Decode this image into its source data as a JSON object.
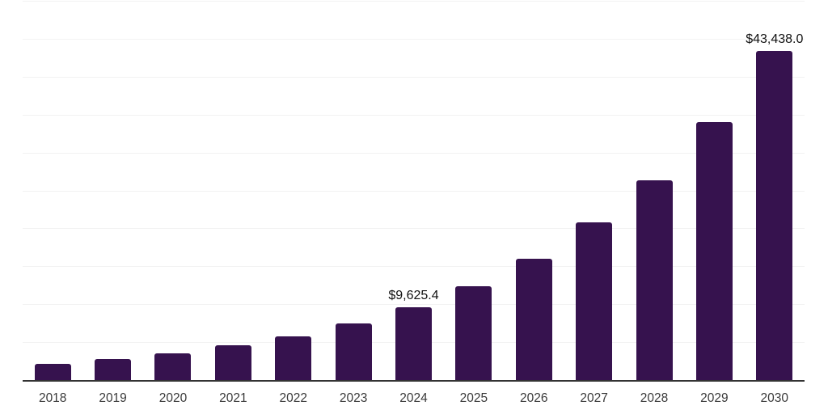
{
  "chart_data": {
    "type": "bar",
    "title": "",
    "xlabel": "",
    "ylabel": "",
    "categories": [
      "2018",
      "2019",
      "2020",
      "2021",
      "2022",
      "2023",
      "2024",
      "2025",
      "2026",
      "2027",
      "2028",
      "2029",
      "2030"
    ],
    "values": [
      2100,
      2800,
      3550,
      4550,
      5760,
      7490,
      9625.4,
      12340,
      15990,
      20760,
      26370,
      34040,
      43438.0
    ],
    "bar_labels": [
      "",
      "",
      "",
      "",
      "",
      "",
      "$9,625.4",
      "",
      "",
      "",
      "",
      "",
      "$43,438.0"
    ],
    "ylim": [
      0,
      50000
    ],
    "grid_step": 5000,
    "grid": "horizontal-only",
    "legend": "none",
    "y_tick_labels": "none",
    "colors": {
      "bar": "#36124E",
      "grid_line": "#F2F2F2",
      "axis_line": "#333333",
      "bar_label_text": "#111111",
      "tick_text": "#3A3A3A",
      "background": "#FFFFFF"
    }
  }
}
